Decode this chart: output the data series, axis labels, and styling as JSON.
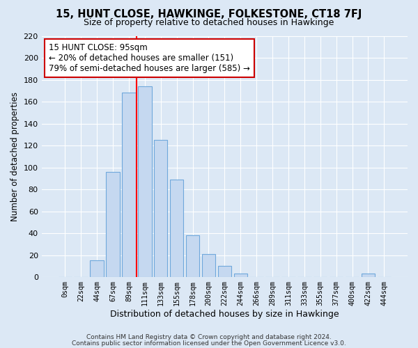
{
  "title": "15, HUNT CLOSE, HAWKINGE, FOLKESTONE, CT18 7FJ",
  "subtitle": "Size of property relative to detached houses in Hawkinge",
  "xlabel": "Distribution of detached houses by size in Hawkinge",
  "ylabel": "Number of detached properties",
  "bar_labels": [
    "0sqm",
    "22sqm",
    "44sqm",
    "67sqm",
    "89sqm",
    "111sqm",
    "133sqm",
    "155sqm",
    "178sqm",
    "200sqm",
    "222sqm",
    "244sqm",
    "266sqm",
    "289sqm",
    "311sqm",
    "333sqm",
    "355sqm",
    "377sqm",
    "400sqm",
    "422sqm",
    "444sqm"
  ],
  "bar_values": [
    0,
    0,
    15,
    96,
    168,
    174,
    125,
    89,
    38,
    21,
    10,
    3,
    0,
    0,
    0,
    0,
    0,
    0,
    0,
    3,
    0
  ],
  "bar_color": "#c5d8f0",
  "bar_edge_color": "#6fa8dc",
  "annotation_text": "15 HUNT CLOSE: 95sqm\n← 20% of detached houses are smaller (151)\n79% of semi-detached houses are larger (585) →",
  "annotation_box_color": "#ffffff",
  "annotation_box_edge_color": "#cc0000",
  "ylim": [
    0,
    220
  ],
  "yticks": [
    0,
    20,
    40,
    60,
    80,
    100,
    120,
    140,
    160,
    180,
    200,
    220
  ],
  "ref_line_x": 4.5,
  "footer_line1": "Contains HM Land Registry data © Crown copyright and database right 2024.",
  "footer_line2": "Contains public sector information licensed under the Open Government Licence v3.0.",
  "bg_color": "#dce8f5",
  "plot_bg_color": "#dce8f5",
  "grid_color": "#ffffff"
}
